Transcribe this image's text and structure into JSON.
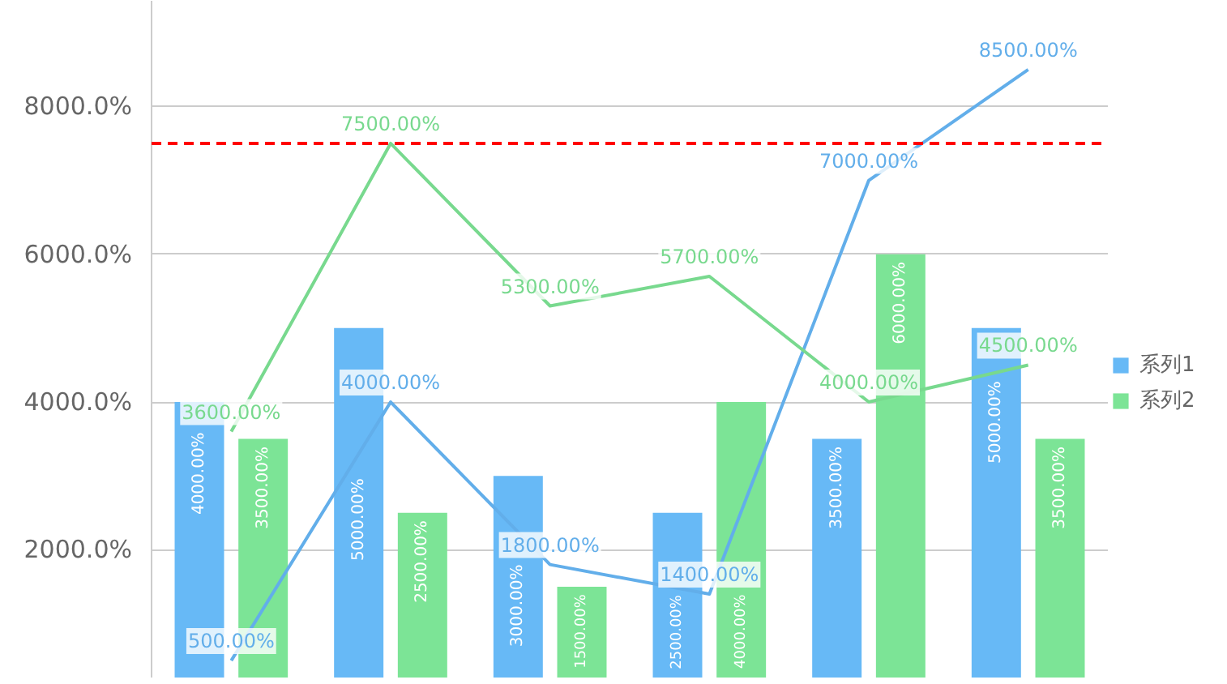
{
  "chart_data": {
    "type": "bar",
    "categories": [
      null,
      null,
      null,
      null,
      null,
      null
    ],
    "ylim": [
      260,
      9430
    ],
    "yticks": [
      {
        "value": 2000,
        "label": "2000.0%"
      },
      {
        "value": 4000,
        "label": "4000.0%"
      },
      {
        "value": 6000,
        "label": "6000.0%"
      },
      {
        "value": 8000,
        "label": "8000.0%"
      }
    ],
    "tick_labels": "y",
    "grid": "y",
    "legend": "right",
    "series": [
      {
        "name": "系列1",
        "type": "bar",
        "color": "#67b9f6",
        "values": [
          4000,
          5000,
          3000,
          2500,
          3500,
          5000
        ],
        "value_labels": [
          "4000.00%",
          "5000.00%",
          "3000.00%",
          "2500.00%",
          "3500.00%",
          "5000.00%"
        ]
      },
      {
        "name": "系列2",
        "type": "bar",
        "color": "#7ce496",
        "values": [
          3500,
          2500,
          1500,
          4000,
          6000,
          3500
        ],
        "value_labels": [
          "3500.00%",
          "2500.00%",
          "1500.00%",
          "4000.00%",
          "6000.00%",
          "3500.00%"
        ]
      },
      {
        "type": "line",
        "color": "#62aeea",
        "values": [
          500,
          4000,
          1800,
          1400,
          7000,
          8500
        ],
        "value_labels": [
          "500.00%",
          "4000.00%",
          "1800.00%",
          "1400.00%",
          "7000.00%",
          "8500.00%"
        ]
      },
      {
        "type": "line",
        "color": "#78d98e",
        "values": [
          3600,
          7500,
          5300,
          5700,
          4000,
          4500
        ],
        "value_labels": [
          "3600.00%",
          "7500.00%",
          "5300.00%",
          "5700.00%",
          "4000.00%",
          "4500.00%"
        ]
      }
    ],
    "ref_lines": [
      {
        "axis": "y",
        "value": 7500,
        "color": "#ff0000",
        "line_style": "dashed"
      }
    ]
  }
}
